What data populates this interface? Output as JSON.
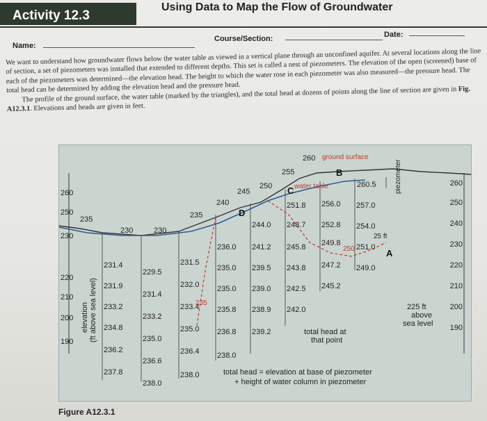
{
  "header": {
    "activity": "Activity 12.3",
    "title": "Using Data to Map the Flow of Groundwater"
  },
  "form": {
    "name_label": "Name:",
    "course_label": "Course/Section:",
    "date_label": "Date:"
  },
  "text": {
    "para1": "We want to understand how groundwater flows below the water table as viewed in a vertical plane through an unconfined aquifer. At several locations along the line of section, a set of piezometers was installed that extended to different depths. This set is called a nest of piezometers. The elevation of the open (screened) base of each of the piezometers was determined—the elevation head. The height to which the water rose in each piezometer was also measured—the pressure head. The total head can be determined by adding the elevation head and the pressure head.",
    "para2_pre": "The profile of the ground surface, the water table (marked by the triangles), and the total head at dozens of points along the line of section are given in ",
    "para2_fig": "Fig. A12.3.1",
    "para2_post": ". Elevations and heads are given in feet."
  },
  "figure": {
    "caption": "Figure A12.3.1",
    "left_axis": [
      "260",
      "250",
      "230",
      "220",
      "210",
      "200",
      "190"
    ],
    "left_axis_title": "elevation",
    "left_axis_subtitle": "(ft above sea level)",
    "right_axis": [
      "260",
      "250",
      "240",
      "230",
      "220",
      "210",
      "200",
      "190"
    ],
    "surface_labels": [
      "235",
      "230",
      "230",
      "235",
      "240",
      "245",
      "250",
      "255",
      "260",
      "260.5"
    ],
    "station_labels": [
      "B",
      "C",
      "D",
      "A"
    ],
    "ground_surface_label": "ground surface",
    "water_table_label": "water table",
    "piezometer_label": "piezometer",
    "heads": {
      "col1": [
        "231.4",
        "231.9",
        "233.2",
        "234.8",
        "236.2",
        "237.8"
      ],
      "col2": [
        "229.5",
        "231.4",
        "233.2",
        "235.0",
        "236.6",
        "238.0"
      ],
      "col3": [
        "231.5",
        "232.0",
        "233.4",
        "235.0",
        "236.4",
        "238.0"
      ],
      "col4": [
        "236.0",
        "235.0",
        "235.0",
        "235.8",
        "236.8",
        "238.0"
      ],
      "col5": [
        "244.0",
        "241.2",
        "239.5",
        "239.0",
        "238.9",
        "239.2"
      ],
      "col6": [
        "251.8",
        "248.7",
        "245.8",
        "243.8",
        "242.5",
        "242.0"
      ],
      "col7": [
        "256.0",
        "252.8",
        "249.8",
        "247.2",
        "245.2"
      ],
      "col8": [
        "257.0",
        "254.0",
        "251.0",
        "249.0"
      ]
    },
    "contour_labels": [
      "250",
      "235"
    ],
    "note_25ft": "25 ft",
    "note_225": [
      "225 ft",
      "above",
      "sea level"
    ],
    "total_head_note": [
      "total head at",
      "that point"
    ],
    "formula": [
      "total head = elevation at base of piezometer",
      "+ height of water column in piezometer"
    ]
  }
}
